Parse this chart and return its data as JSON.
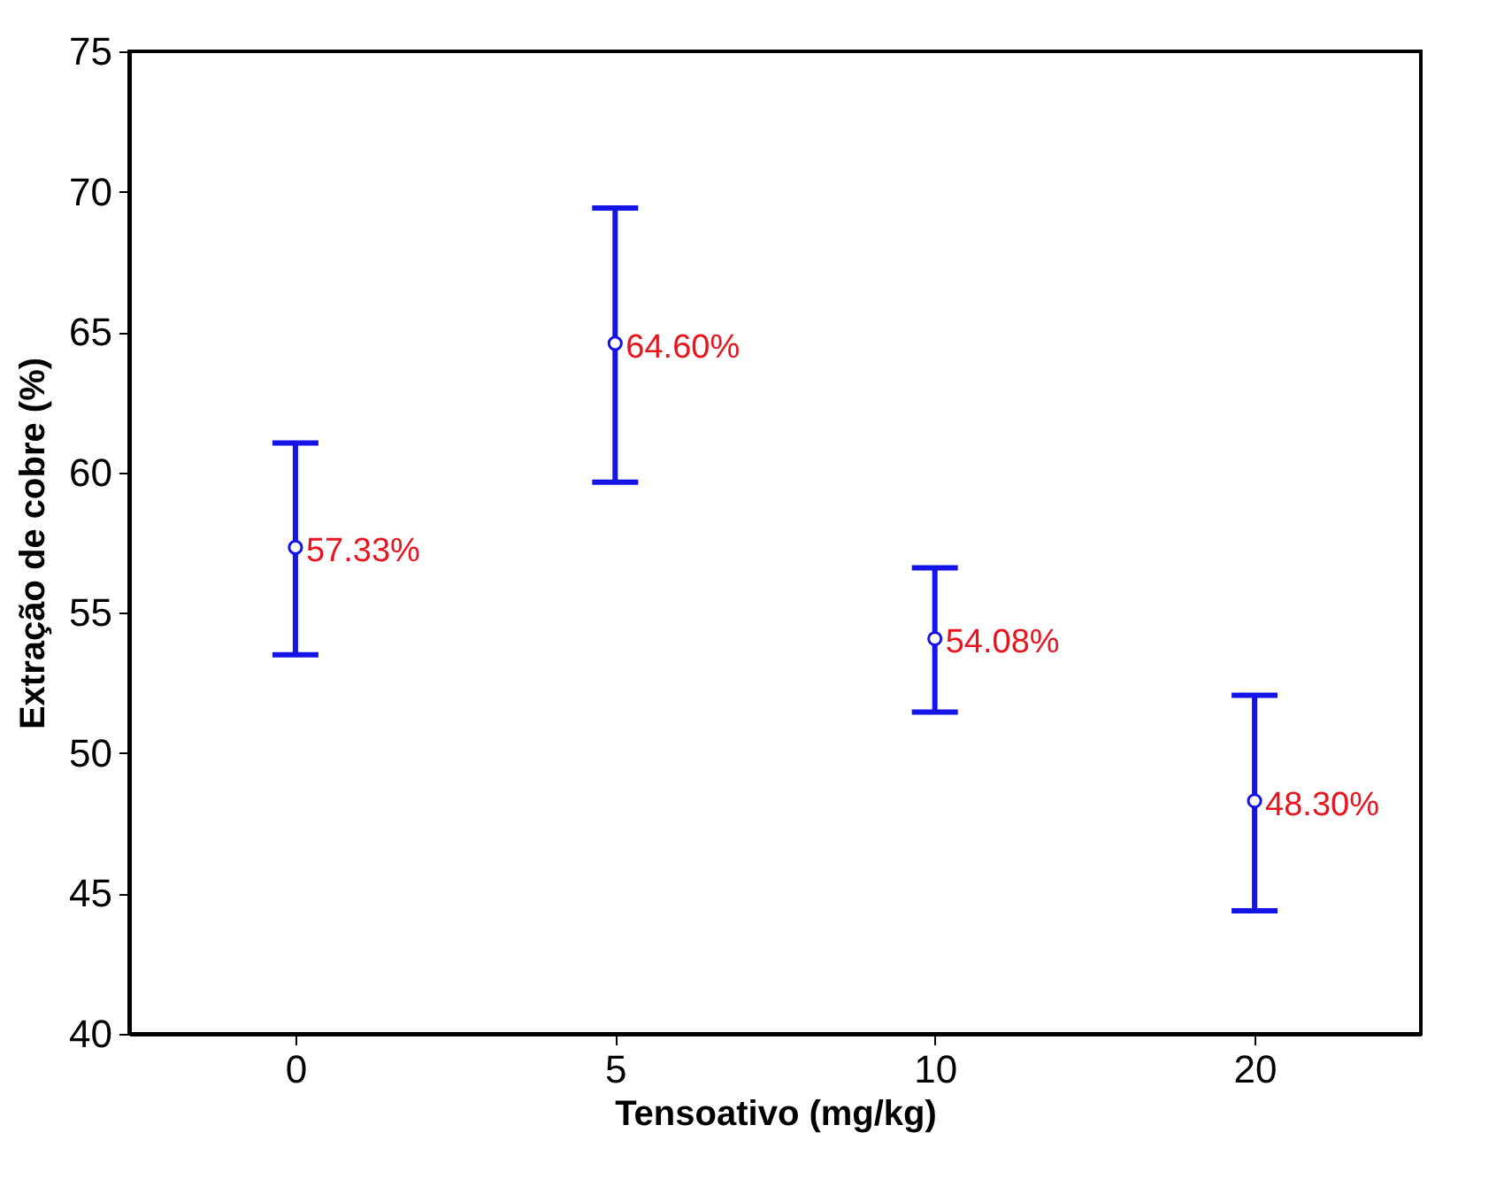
{
  "chart_data": {
    "type": "scatter",
    "xlabel": "Tensoativo (mg/kg)",
    "ylabel": "Extração de cobre (%)",
    "categories": [
      "0",
      "5",
      "10",
      "20"
    ],
    "values": [
      57.33,
      64.6,
      54.08,
      48.3
    ],
    "errors": [
      [
        53.5,
        61.05
      ],
      [
        59.65,
        69.42
      ],
      [
        51.46,
        56.6
      ],
      [
        44.38,
        52.06
      ]
    ],
    "value_labels": [
      "57.33%",
      "64.60%",
      "54.08%",
      "48.30%"
    ],
    "color": "#1414e6",
    "marker": "circle",
    "ylim": [
      40,
      75
    ],
    "yticks": [
      40,
      45,
      50,
      55,
      60,
      65,
      70,
      75
    ],
    "grid": false
  }
}
